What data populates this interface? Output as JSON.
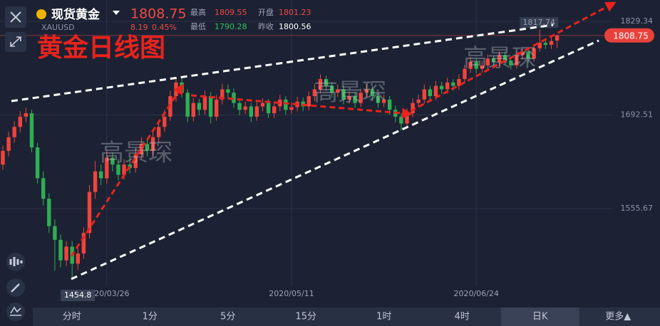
{
  "header": {
    "name": "现货黄金",
    "symbol": "XAUUSD",
    "price": "1808.75",
    "change": "8.19",
    "change_pct": "0.45%",
    "high_label": "最高",
    "high": "1809.55",
    "open_label": "开盘",
    "open": "1801.23",
    "low_label": "最低",
    "low": "1790.28",
    "prev_label": "昨收",
    "prev_close": "1800.56"
  },
  "tabs": [
    "分时",
    "1分",
    "5分",
    "15分",
    "1时",
    "4时",
    "日K",
    "更多▲"
  ],
  "selected_tab": 6,
  "watermark": "高景琛",
  "chart_data": {
    "type": "candlestick",
    "title": "黄金日线图",
    "up_color": "#f0443c",
    "down_color": "#2fae52",
    "categories": [
      null,
      null,
      null,
      null,
      null,
      null,
      null,
      null,
      null,
      null,
      null,
      null,
      null,
      null,
      null,
      null,
      null,
      null,
      "2020/03/26",
      null,
      null,
      null,
      null,
      null,
      null,
      null,
      null,
      null,
      null,
      null,
      null,
      null,
      null,
      null,
      null,
      null,
      null,
      null,
      null,
      null,
      null,
      null,
      null,
      null,
      null,
      null,
      null,
      null,
      null,
      null,
      "2020/05/11",
      null,
      null,
      null,
      null,
      null,
      null,
      null,
      null,
      null,
      null,
      null,
      null,
      null,
      null,
      null,
      null,
      null,
      null,
      null,
      null,
      null,
      null,
      null,
      null,
      null,
      null,
      null,
      null,
      null,
      null,
      null,
      "2020/06/24",
      null,
      null,
      null,
      null,
      null,
      null,
      null,
      null,
      null,
      null,
      null,
      null,
      null,
      null
    ],
    "open": [
      1620,
      1640,
      1660,
      1675,
      1690,
      1695,
      1645,
      1600,
      1570,
      1530,
      1510,
      1480,
      1500,
      1475,
      1490,
      1520,
      1580,
      1610,
      1600,
      1630,
      1620,
      1605,
      1620,
      1615,
      1635,
      1650,
      1640,
      1660,
      1675,
      1690,
      1720,
      1740,
      1725,
      1690,
      1710,
      1700,
      1720,
      1690,
      1715,
      1730,
      1725,
      1710,
      1700,
      1705,
      1690,
      1705,
      1710,
      1695,
      1705,
      1715,
      1700,
      1704,
      1712,
      1705,
      1720,
      1730,
      1745,
      1735,
      1725,
      1730,
      1715,
      1720,
      1710,
      1725,
      1730,
      1720,
      1710,
      1715,
      1700,
      1690,
      1680,
      1695,
      1710,
      1715,
      1730,
      1720,
      1735,
      1730,
      1740,
      1735,
      1745,
      1760,
      1770,
      1760,
      1765,
      1775,
      1770,
      1780,
      1772,
      1765,
      1780,
      1785,
      1775,
      1790,
      1798,
      1795,
      1801.23
    ],
    "high": [
      1648,
      1668,
      1683,
      1698,
      1703,
      1700,
      1652,
      1610,
      1578,
      1540,
      1518,
      1508,
      1508,
      1498,
      1528,
      1590,
      1625,
      1620,
      1640,
      1638,
      1628,
      1628,
      1630,
      1643,
      1660,
      1658,
      1668,
      1683,
      1700,
      1728,
      1748,
      1747,
      1730,
      1718,
      1716,
      1728,
      1726,
      1722,
      1738,
      1737,
      1731,
      1716,
      1712,
      1710,
      1712,
      1717,
      1716,
      1712,
      1722,
      1720,
      1711,
      1719,
      1718,
      1727,
      1738,
      1752,
      1750,
      1740,
      1737,
      1735,
      1727,
      1726,
      1731,
      1738,
      1735,
      1725,
      1722,
      1720,
      1706,
      1695,
      1702,
      1717,
      1722,
      1737,
      1735,
      1742,
      1741,
      1747,
      1745,
      1752,
      1766,
      1777,
      1775,
      1772,
      1781,
      1779,
      1786,
      1785,
      1778,
      1786,
      1790,
      1789,
      1796,
      1817.74,
      1804,
      1806,
      1809.55
    ],
    "low": [
      1612,
      1632,
      1652,
      1667,
      1682,
      1638,
      1592,
      1560,
      1520,
      1465,
      1470,
      1472,
      1454.8,
      1466,
      1482,
      1512,
      1570,
      1590,
      1592,
      1610,
      1597,
      1598,
      1607,
      1608,
      1628,
      1632,
      1633,
      1652,
      1668,
      1684,
      1712,
      1718,
      1682,
      1683,
      1692,
      1693,
      1680,
      1684,
      1708,
      1717,
      1703,
      1692,
      1694,
      1682,
      1684,
      1698,
      1688,
      1688,
      1698,
      1693,
      1694,
      1698,
      1698,
      1699,
      1713,
      1724,
      1728,
      1718,
      1719,
      1708,
      1709,
      1703,
      1704,
      1718,
      1713,
      1703,
      1704,
      1693,
      1682,
      1670,
      1674,
      1689,
      1704,
      1709,
      1713,
      1714,
      1723,
      1724,
      1728,
      1729,
      1739,
      1754,
      1753,
      1754,
      1759,
      1763,
      1764,
      1766,
      1759,
      1760,
      1774,
      1769,
      1770,
      1785,
      1789,
      1789,
      1790.28
    ],
    "close": [
      1640,
      1660,
      1675,
      1690,
      1695,
      1645,
      1600,
      1570,
      1530,
      1510,
      1480,
      1500,
      1475,
      1490,
      1520,
      1580,
      1610,
      1600,
      1630,
      1620,
      1605,
      1620,
      1615,
      1635,
      1650,
      1640,
      1660,
      1675,
      1690,
      1720,
      1740,
      1725,
      1690,
      1710,
      1700,
      1720,
      1690,
      1715,
      1730,
      1725,
      1710,
      1700,
      1705,
      1690,
      1705,
      1710,
      1695,
      1705,
      1715,
      1700,
      1704,
      1712,
      1705,
      1720,
      1730,
      1745,
      1735,
      1725,
      1730,
      1715,
      1720,
      1710,
      1725,
      1730,
      1720,
      1710,
      1715,
      1700,
      1690,
      1680,
      1695,
      1710,
      1715,
      1730,
      1720,
      1735,
      1730,
      1740,
      1735,
      1745,
      1760,
      1770,
      1760,
      1765,
      1775,
      1770,
      1780,
      1772,
      1765,
      1780,
      1785,
      1775,
      1790,
      1798,
      1795,
      1800.56,
      1808.75
    ],
    "max_marker": 93,
    "min_marker": 12,
    "ylim": [
      1442.24,
      1860.56
    ],
    "yticks": [
      1555.67,
      1692.51,
      1829.34
    ],
    "grid": true
  }
}
